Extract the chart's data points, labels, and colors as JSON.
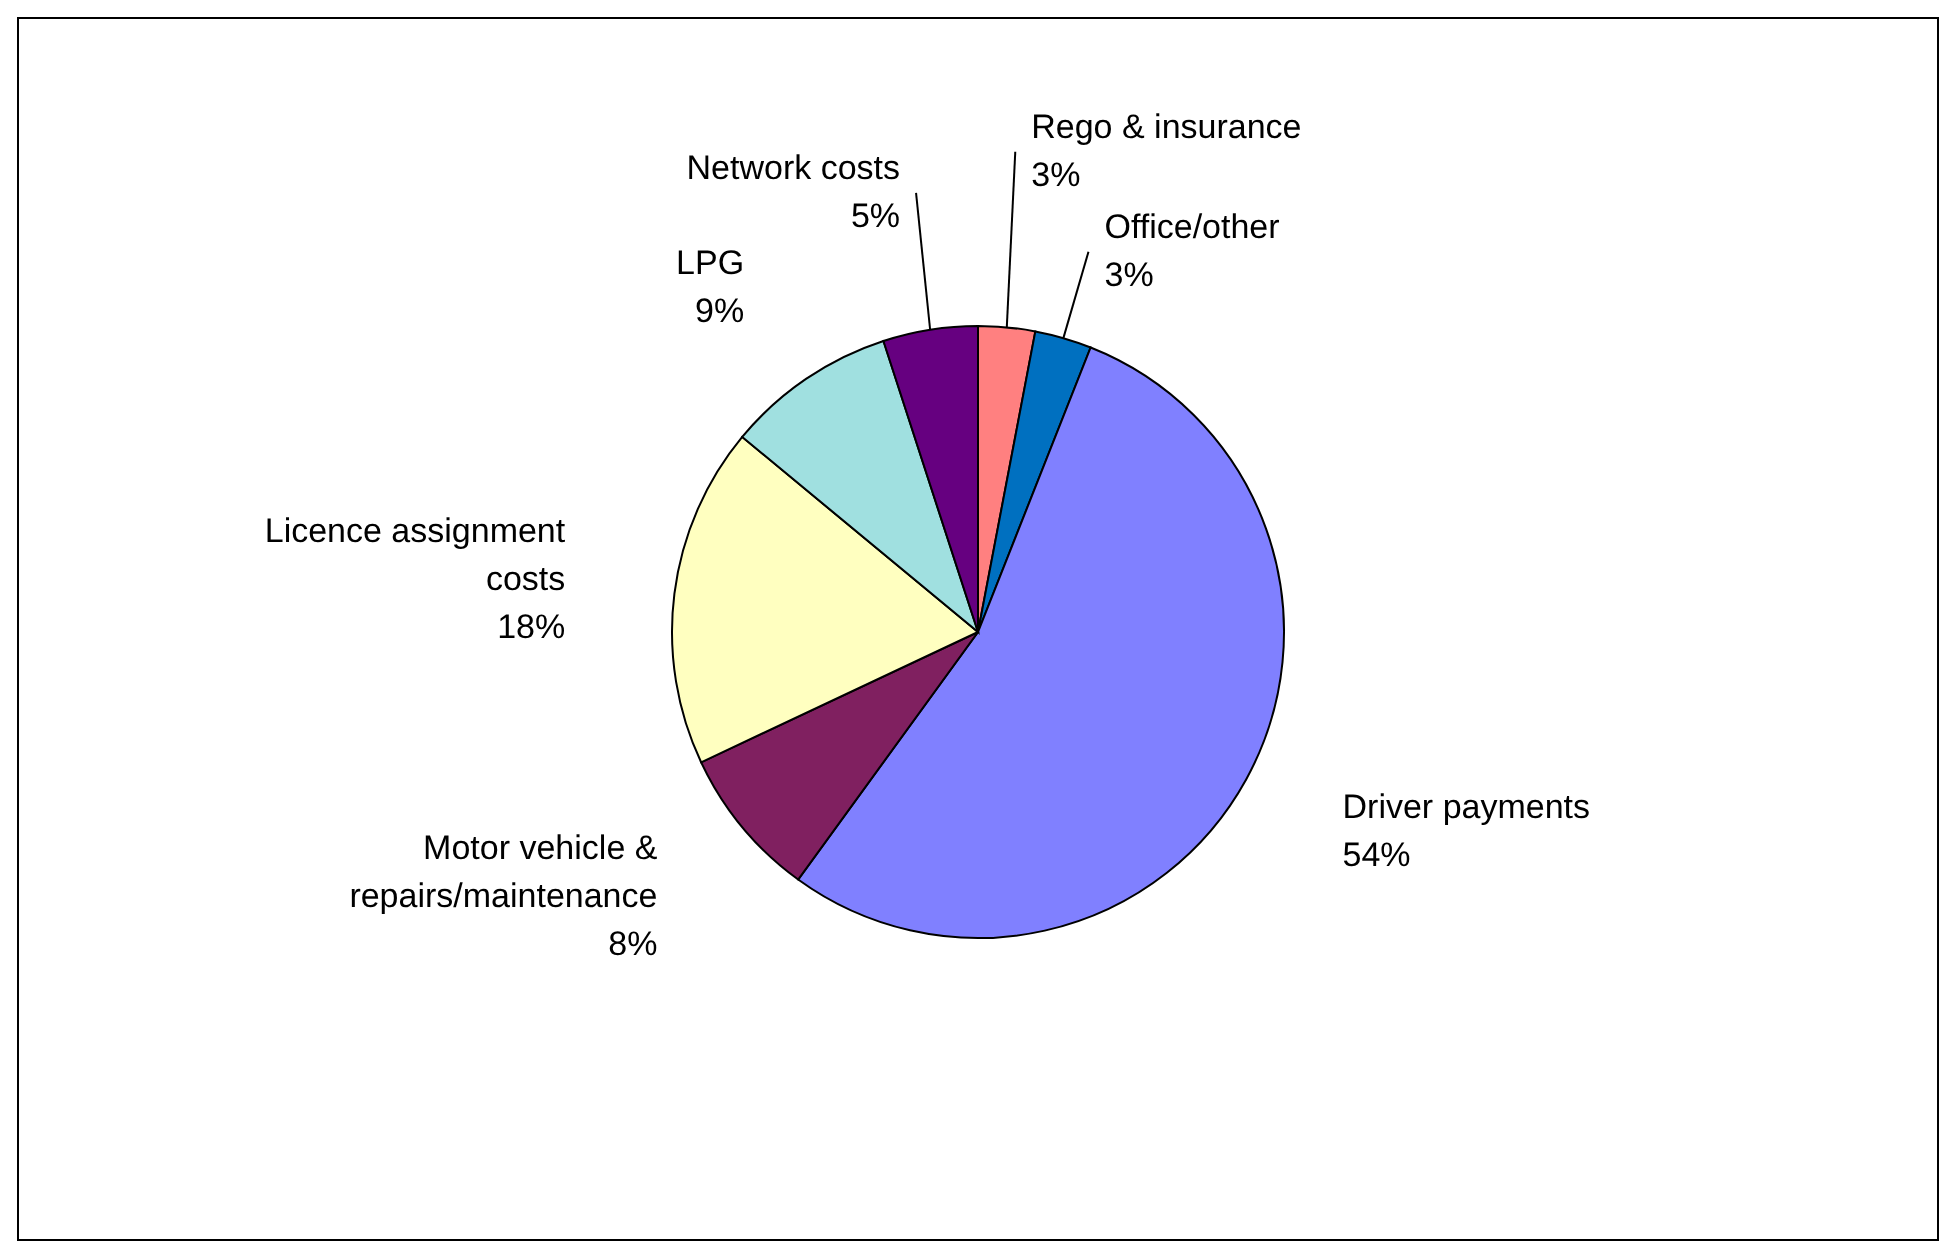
{
  "chart_data": {
    "type": "pie",
    "categories": [
      "Rego & insurance",
      "Office/other",
      "Driver payments",
      "Motor vehicle & repairs/maintenance",
      "Licence assignment costs",
      "LPG",
      "Network costs"
    ],
    "values": [
      3,
      3,
      54,
      8,
      18,
      9,
      5
    ],
    "value_labels": [
      "3%",
      "3%",
      "54%",
      "8%",
      "18%",
      "9%",
      "5%"
    ],
    "colors": [
      "#ff8080",
      "#0070c0",
      "#8080ff",
      "#802060",
      "#ffffc0",
      "#a0e0e0",
      "#660080"
    ]
  }
}
